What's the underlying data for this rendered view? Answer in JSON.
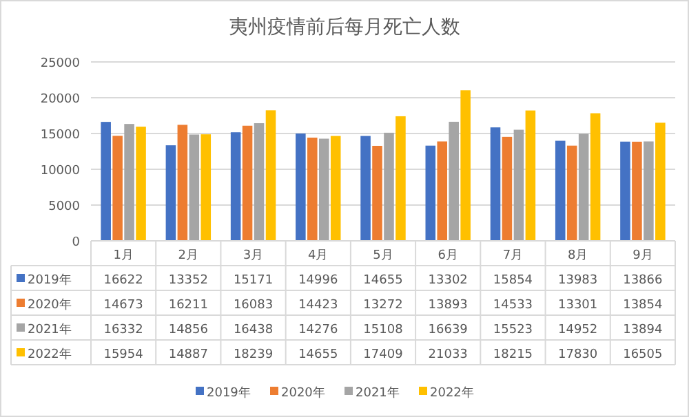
{
  "chart_data": {
    "type": "bar",
    "title": "夷州疫情前后每月死亡人数",
    "categories": [
      "1月",
      "2月",
      "3月",
      "4月",
      "5月",
      "6月",
      "7月",
      "8月",
      "9月"
    ],
    "series": [
      {
        "name": "2019年",
        "color": "#4472c4",
        "values": [
          16622,
          13352,
          15171,
          14996,
          14655,
          13302,
          15854,
          13983,
          13866
        ]
      },
      {
        "name": "2020年",
        "color": "#ed7d31",
        "values": [
          14673,
          16211,
          16083,
          14423,
          13272,
          13893,
          14533,
          13301,
          13854
        ]
      },
      {
        "name": "2021年",
        "color": "#a5a5a5",
        "values": [
          16332,
          14856,
          16438,
          14276,
          15108,
          16639,
          15523,
          14952,
          13894
        ]
      },
      {
        "name": "2022年",
        "color": "#ffc000",
        "values": [
          15954,
          14887,
          18239,
          14655,
          17409,
          21033,
          18215,
          17830,
          16505
        ]
      }
    ],
    "ylim": [
      0,
      25000
    ],
    "yticks": [
      0,
      5000,
      10000,
      15000,
      20000,
      25000
    ],
    "grid": "y",
    "legend": "bottom",
    "data_labels": true
  }
}
